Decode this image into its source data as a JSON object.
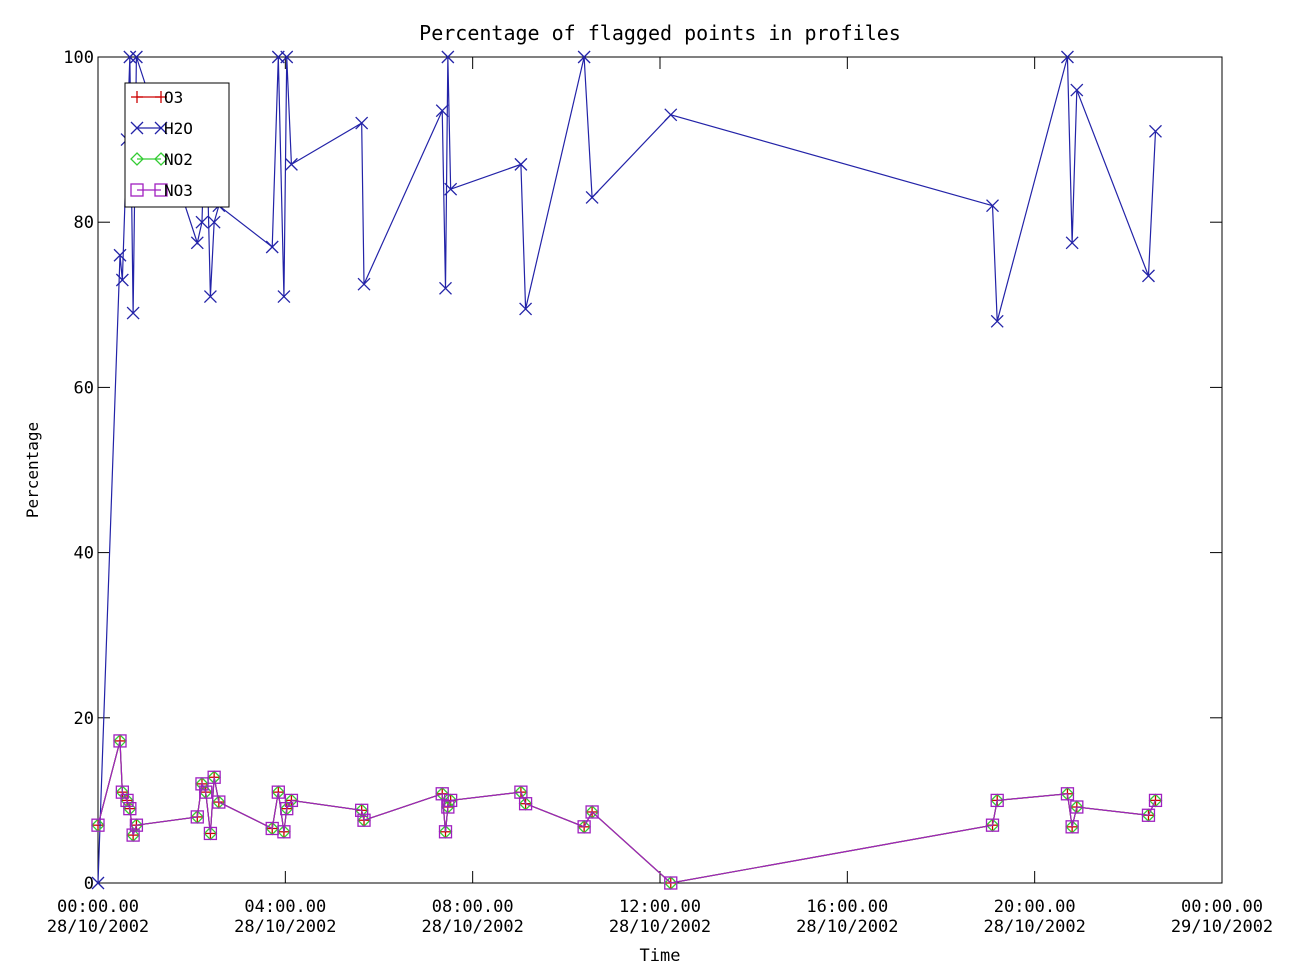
{
  "chart_data": {
    "type": "line",
    "title": "Percentage of flagged points in profiles",
    "xlabel": "Time",
    "ylabel": "Percentage",
    "xlim": [
      "28/10/2002 00:00:00",
      "29/10/2002 00:00:00"
    ],
    "ylim": [
      0,
      100
    ],
    "grid": false,
    "legend_position": "top-left",
    "x_ticks": [
      {
        "time": "00:00.00",
        "date": "28/10/2002"
      },
      {
        "time": "04:00.00",
        "date": "28/10/2002"
      },
      {
        "time": "08:00.00",
        "date": "28/10/2002"
      },
      {
        "time": "12:00.00",
        "date": "28/10/2002"
      },
      {
        "time": "16:00.00",
        "date": "28/10/2002"
      },
      {
        "time": "20:00.00",
        "date": "28/10/2002"
      },
      {
        "time": "00:00.00",
        "date": "29/10/2002"
      }
    ],
    "y_ticks": [
      "0",
      "20",
      "40",
      "60",
      "80",
      "100"
    ],
    "x_values_hours": [
      0.0,
      0.47,
      0.52,
      0.62,
      0.68,
      0.75,
      0.82,
      2.12,
      2.22,
      2.3,
      2.4,
      2.48,
      2.58,
      3.72,
      3.85,
      3.97,
      4.03,
      4.13,
      5.63,
      5.68,
      7.35,
      7.42,
      7.47,
      7.53,
      9.03,
      9.13,
      10.38,
      10.55,
      12.23,
      19.1,
      19.2,
      20.7,
      20.8,
      20.9,
      22.43,
      22.58
    ],
    "series": [
      {
        "name": "O3",
        "color": "#cc0000",
        "marker": "plus",
        "values": [
          7.0,
          17.2,
          11.0,
          10.0,
          9.0,
          5.8,
          7.0,
          8.0,
          12.0,
          11.0,
          6.0,
          12.8,
          9.8,
          6.6,
          11.0,
          6.2,
          9.0,
          10.0,
          8.8,
          7.6,
          10.8,
          6.2,
          9.2,
          10.0,
          11.0,
          9.6,
          6.8,
          8.6,
          0.0,
          7.0,
          10.0,
          10.8,
          6.8,
          9.2,
          8.2,
          10.0
        ]
      },
      {
        "name": "H2O",
        "color": "#2323a8",
        "marker": "x",
        "values": [
          0.0,
          76.0,
          73.0,
          90.0,
          100.0,
          69.0,
          100.0,
          77.5,
          80.0,
          95.0,
          71.0,
          80.0,
          82.0,
          77.0,
          100.0,
          71.0,
          100.0,
          87.0,
          92.0,
          72.5,
          93.5,
          72.0,
          100.0,
          84.0,
          87.0,
          69.5,
          100.0,
          83.0,
          93.0,
          82.0,
          68.0,
          100.0,
          77.5,
          96.0,
          73.5,
          91.0
        ]
      },
      {
        "name": "NO2",
        "color": "#33cc33",
        "marker": "diamond",
        "values": [
          7.0,
          17.2,
          11.0,
          10.0,
          9.0,
          5.8,
          7.0,
          8.0,
          12.0,
          11.0,
          6.0,
          12.8,
          9.8,
          6.6,
          11.0,
          6.2,
          9.0,
          10.0,
          8.8,
          7.6,
          10.8,
          6.2,
          9.2,
          10.0,
          11.0,
          9.6,
          6.8,
          8.6,
          0.0,
          7.0,
          10.0,
          10.8,
          6.8,
          9.2,
          8.2,
          10.0
        ]
      },
      {
        "name": "NO3",
        "color": "#a020c0",
        "marker": "square",
        "values": [
          7.0,
          17.2,
          11.0,
          10.0,
          9.0,
          5.8,
          7.0,
          8.0,
          12.0,
          11.0,
          6.0,
          12.8,
          9.8,
          6.6,
          11.0,
          6.2,
          9.0,
          10.0,
          8.8,
          7.6,
          10.8,
          6.2,
          9.2,
          10.0,
          11.0,
          9.6,
          6.8,
          8.6,
          0.0,
          7.0,
          10.0,
          10.8,
          6.8,
          9.2,
          8.2,
          10.0
        ]
      }
    ]
  }
}
